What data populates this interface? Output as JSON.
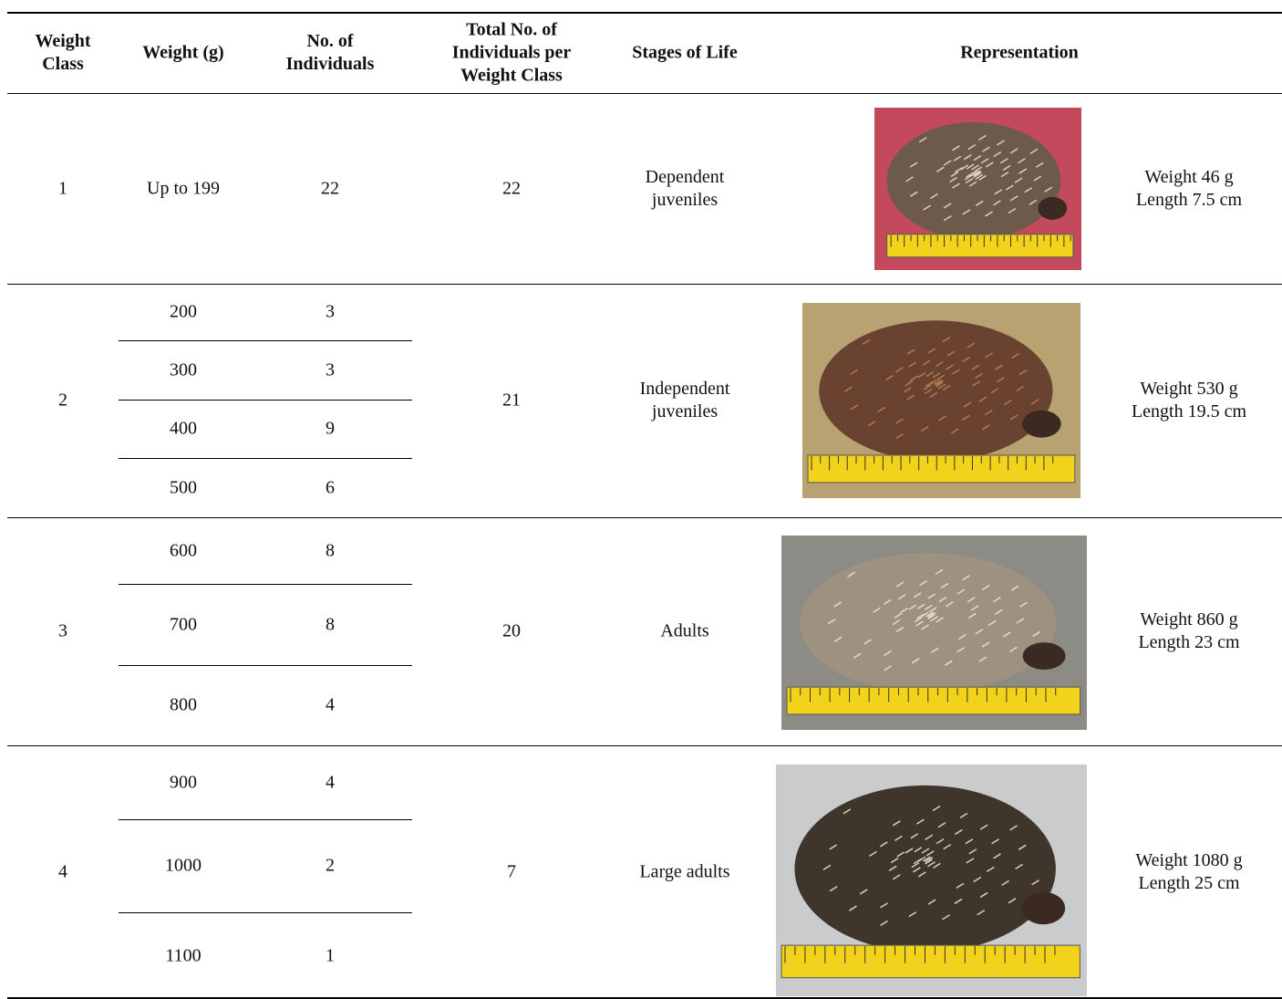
{
  "table": {
    "header": [
      "Weight Class",
      "Weight (g)",
      "No. of Individuals",
      "Total No. of Individuals per Weight Class",
      "Stages of Life",
      "Representation"
    ],
    "groups": [
      {
        "class": "1",
        "rows": [
          [
            "Up to 199",
            "22"
          ]
        ],
        "total": "22",
        "stage": "Dependent juveniles",
        "caption": [
          "Weight 46 g",
          "Length 7.5 cm"
        ]
      },
      {
        "class": "2",
        "rows": [
          [
            "200",
            "3"
          ],
          [
            "300",
            "3"
          ],
          [
            "400",
            "9"
          ],
          [
            "500",
            "6"
          ]
        ],
        "total": "21",
        "stage": "Independent juveniles",
        "caption": [
          "Weight 530 g",
          "Length 19.5 cm"
        ]
      },
      {
        "class": "3",
        "rows": [
          [
            "600",
            "8"
          ],
          [
            "700",
            "8"
          ],
          [
            "800",
            "4"
          ]
        ],
        "total": "20",
        "stage": "Adults",
        "caption": [
          "Weight 860 g",
          "Length 23 cm"
        ]
      },
      {
        "class": "4",
        "rows": [
          [
            "900",
            "4"
          ],
          [
            "1000",
            "2"
          ],
          [
            "1100",
            "1"
          ]
        ],
        "total": "7",
        "stage": "Large adults",
        "caption": [
          "Weight 1080 g",
          "Length 25 cm"
        ]
      }
    ]
  }
}
